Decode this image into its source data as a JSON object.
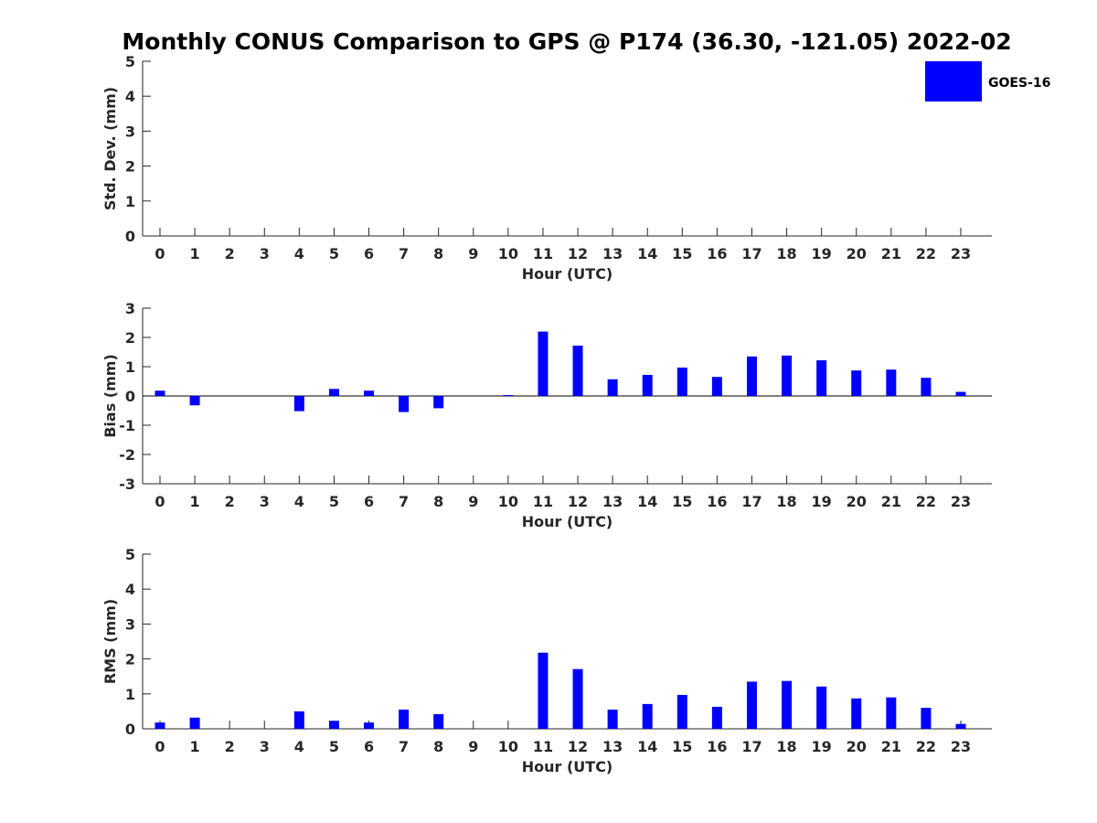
{
  "title": "Monthly CONUS Comparison to GPS @ P174 (36.30, -121.05) 2022-02",
  "legend": {
    "label": "GOES-16",
    "color": "#0000ff",
    "placement": "top-right"
  },
  "chart_data": [
    {
      "type": "bar",
      "name": "std-dev",
      "xlabel": "Hour (UTC)",
      "ylabel": "Std. Dev. (mm)",
      "ylim": [
        0,
        5
      ],
      "yticks": [
        0,
        1,
        2,
        3,
        4,
        5
      ],
      "categories": [
        "0",
        "1",
        "2",
        "3",
        "4",
        "5",
        "6",
        "7",
        "8",
        "9",
        "10",
        "11",
        "12",
        "13",
        "14",
        "15",
        "16",
        "17",
        "18",
        "19",
        "20",
        "21",
        "22",
        "23"
      ],
      "series": [
        {
          "values": [
            0,
            0,
            0,
            0,
            0,
            0,
            0,
            0,
            0,
            0,
            0,
            0,
            0,
            0,
            0,
            0,
            0,
            0,
            0,
            0,
            0,
            0,
            0,
            0
          ]
        }
      ]
    },
    {
      "type": "bar",
      "name": "bias",
      "xlabel": "Hour (UTC)",
      "ylabel": "Bias (mm)",
      "ylim": [
        -3,
        3
      ],
      "yticks": [
        -3,
        -2,
        -1,
        0,
        1,
        2,
        3
      ],
      "categories": [
        "0",
        "1",
        "2",
        "3",
        "4",
        "5",
        "6",
        "7",
        "8",
        "9",
        "10",
        "11",
        "12",
        "13",
        "14",
        "15",
        "16",
        "17",
        "18",
        "19",
        "20",
        "21",
        "22",
        "23"
      ],
      "series": [
        {
          "values": [
            0.18,
            -0.32,
            0,
            0,
            -0.52,
            0.24,
            0.18,
            -0.55,
            -0.42,
            0,
            0.03,
            2.2,
            1.72,
            0.57,
            0.72,
            0.97,
            0.65,
            1.35,
            1.38,
            1.22,
            0.87,
            0.9,
            0.62,
            0.14
          ]
        }
      ]
    },
    {
      "type": "bar",
      "name": "rms",
      "xlabel": "Hour (UTC)",
      "ylabel": "RMS (mm)",
      "ylim": [
        0,
        5
      ],
      "yticks": [
        0,
        1,
        2,
        3,
        4,
        5
      ],
      "categories": [
        "0",
        "1",
        "2",
        "3",
        "4",
        "5",
        "6",
        "7",
        "8",
        "9",
        "10",
        "11",
        "12",
        "13",
        "14",
        "15",
        "16",
        "17",
        "18",
        "19",
        "20",
        "21",
        "22",
        "23"
      ],
      "series": [
        {
          "values": [
            0.18,
            0.32,
            0,
            0,
            0.5,
            0.23,
            0.18,
            0.55,
            0.42,
            0,
            0,
            2.18,
            1.71,
            0.55,
            0.71,
            0.97,
            0.63,
            1.35,
            1.37,
            1.21,
            0.87,
            0.9,
            0.6,
            0.14
          ]
        }
      ]
    }
  ]
}
